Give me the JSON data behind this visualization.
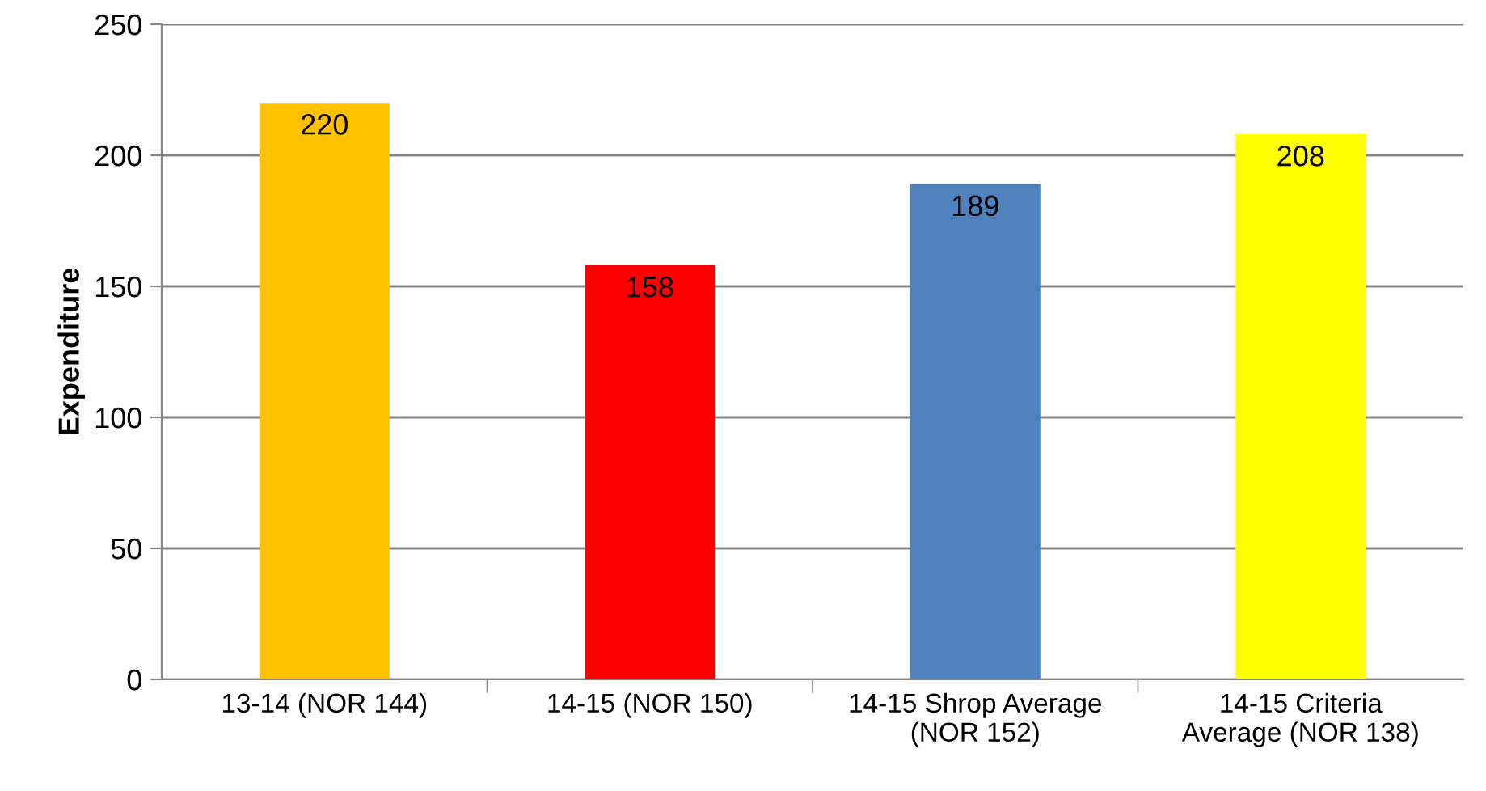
{
  "chart_data": {
    "type": "bar",
    "ylabel": "Expenditure",
    "categories": [
      "13-14 (NOR 144)",
      "14-15 (NOR 150)",
      "14-15 Shrop Average\n(NOR 152)",
      "14-15 Criteria\nAverage (NOR 138)"
    ],
    "values": [
      220,
      158,
      189,
      208
    ],
    "colors": [
      "#ffc000",
      "#ff0000",
      "#4f81bd",
      "#ffff00"
    ],
    "ylim": [
      0,
      250
    ],
    "yticks": [
      0,
      50,
      100,
      150,
      200,
      250
    ],
    "grid": "y",
    "data_labels": true,
    "legend": false
  }
}
